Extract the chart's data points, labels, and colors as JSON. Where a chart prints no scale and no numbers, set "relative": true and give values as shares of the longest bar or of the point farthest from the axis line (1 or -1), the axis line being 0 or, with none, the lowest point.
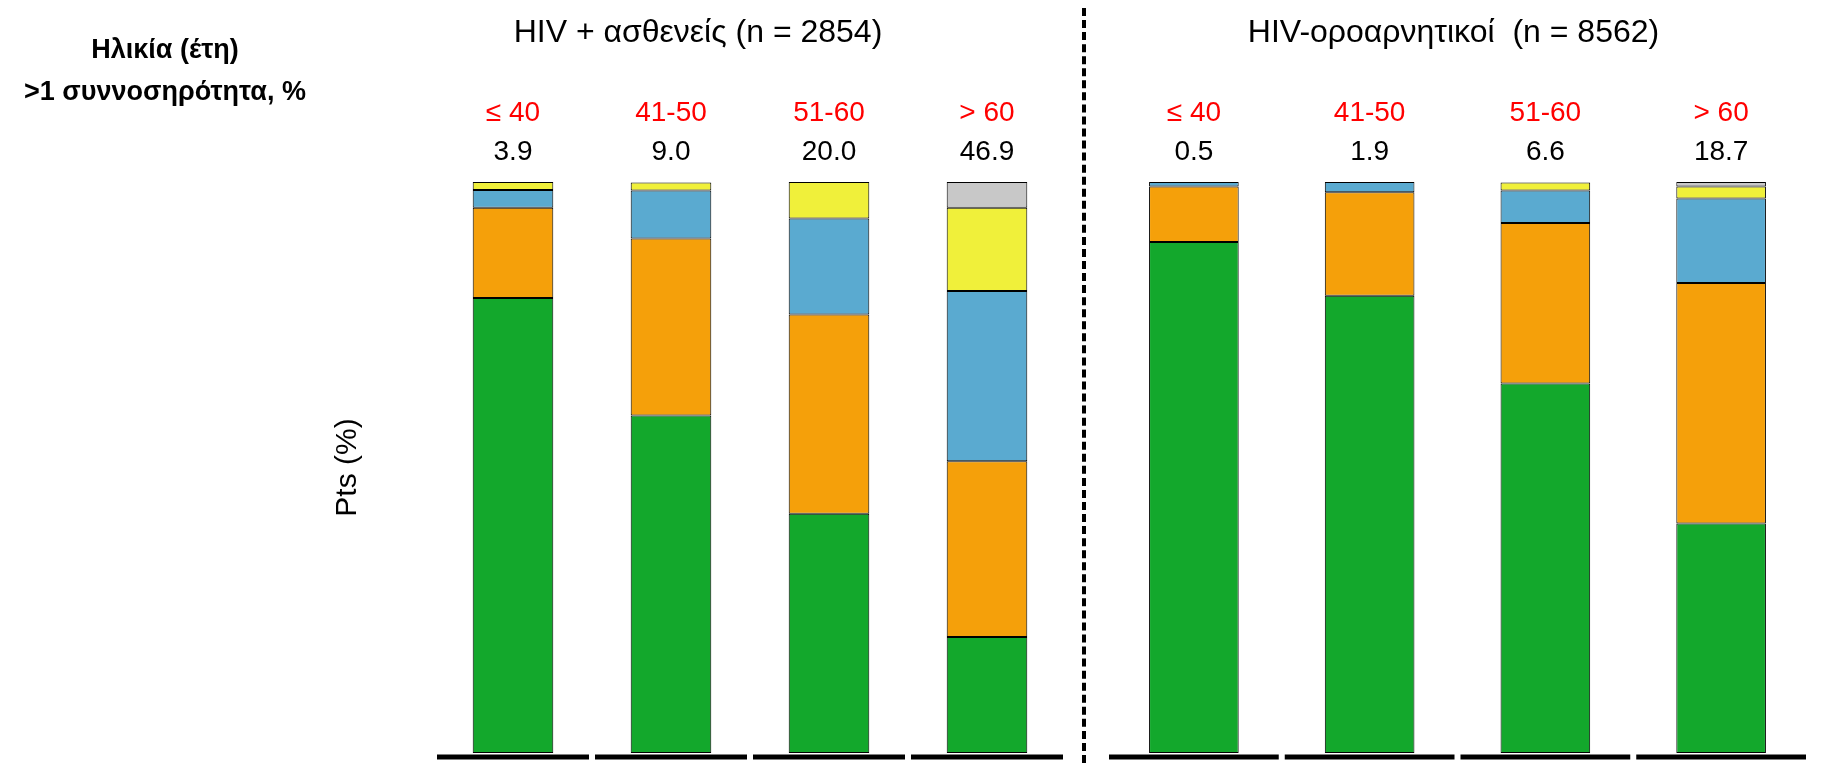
{
  "chart_data": [
    {
      "type": "bar",
      "stacked": true,
      "relative": true,
      "title": "HIV + ασθενείς (n = 2854)",
      "ylabel": "Pts (%)",
      "categories": [
        "≤ 40",
        "41-50",
        "51-60",
        "> 60"
      ],
      "series": [
        {
          "color": "#13a82c",
          "values": [
            0.797,
            0.591,
            0.419,
            0.203
          ]
        },
        {
          "color": "#f5a00a",
          "values": [
            0.158,
            0.31,
            0.349,
            0.308
          ]
        },
        {
          "color": "#5aaad0",
          "values": [
            0.031,
            0.084,
            0.168,
            0.298
          ]
        },
        {
          "color": "#f0f03a",
          "values": [
            0.014,
            0.014,
            0.064,
            0.146
          ]
        },
        {
          "color": "#c8c8c8",
          "values": [
            0,
            0,
            0,
            0.045
          ]
        }
      ],
      "annotations": [
        "Ηλικία (έτη)",
        ">1 συννοσηρότητα, %",
        "3.9",
        "9.0",
        "20.0",
        "46.9"
      ]
    },
    {
      "type": "bar",
      "stacked": true,
      "relative": true,
      "title": "HIV-οροαρνητικοί  (n = 8562)",
      "categories": [
        "≤ 40",
        "41-50",
        "51-60",
        "> 60"
      ],
      "series": [
        {
          "color": "#13a82c",
          "values": [
            0.895,
            0.801,
            0.647,
            0.402
          ]
        },
        {
          "color": "#f5a00a",
          "values": [
            0.097,
            0.181,
            0.281,
            0.421
          ]
        },
        {
          "color": "#5aaad0",
          "values": [
            0.008,
            0.018,
            0.057,
            0.148
          ]
        },
        {
          "color": "#f0f03a",
          "values": [
            0,
            0,
            0.014,
            0.021
          ]
        },
        {
          "color": "#c8c8c8",
          "values": [
            0,
            0,
            0,
            0.008
          ]
        }
      ],
      "annotations": [
        "0.5",
        "1.9",
        "6.6",
        "18.7"
      ]
    }
  ]
}
